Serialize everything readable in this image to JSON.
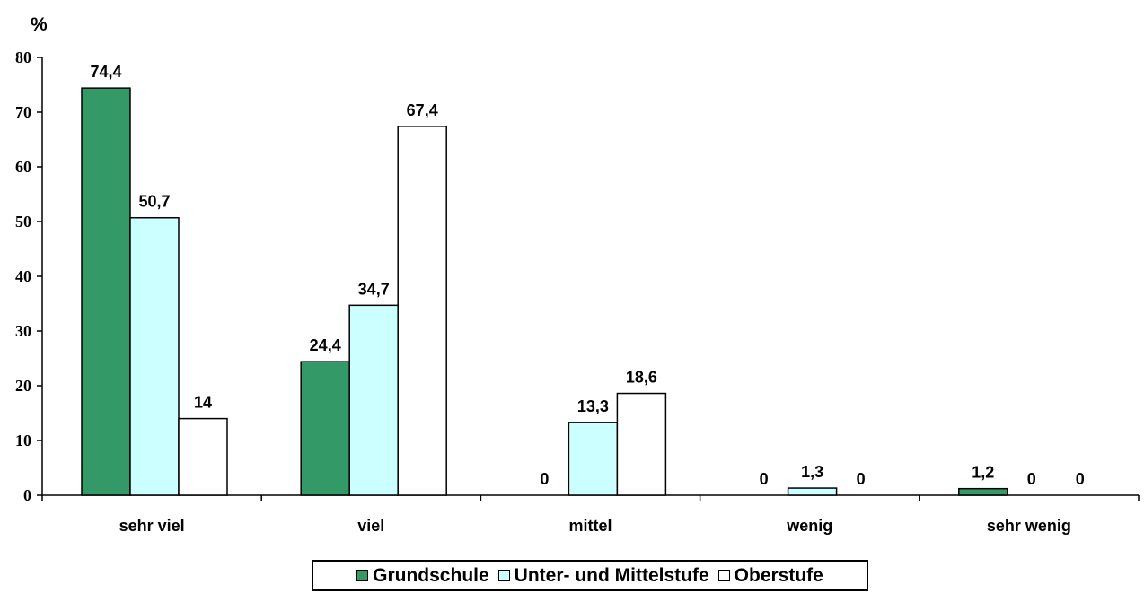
{
  "chart_data": {
    "type": "bar",
    "ylabel": "%",
    "ylim": [
      0,
      80
    ],
    "yticks": [
      0,
      10,
      20,
      30,
      40,
      50,
      60,
      70,
      80
    ],
    "categories": [
      "sehr viel",
      "viel",
      "mittel",
      "wenig",
      "sehr wenig"
    ],
    "series": [
      {
        "name": "Grundschule",
        "color": "#339966",
        "values": [
          74.4,
          24.4,
          0,
          0,
          1.2
        ],
        "labels": [
          "74,4",
          "24,4",
          "0",
          "0",
          "1,2"
        ]
      },
      {
        "name": "Unter- und Mittelstufe",
        "color": "#ccffff",
        "values": [
          50.7,
          34.7,
          13.3,
          1.3,
          0
        ],
        "labels": [
          "50,7",
          "34,7",
          "13,3",
          "1,3",
          "0"
        ]
      },
      {
        "name": "Oberstufe",
        "color": "#ffffff",
        "values": [
          14,
          67.4,
          18.6,
          0,
          0
        ],
        "labels": [
          "14",
          "67,4",
          "18,6",
          "0",
          "0"
        ]
      }
    ],
    "grid": false,
    "legend_position": "bottom"
  }
}
